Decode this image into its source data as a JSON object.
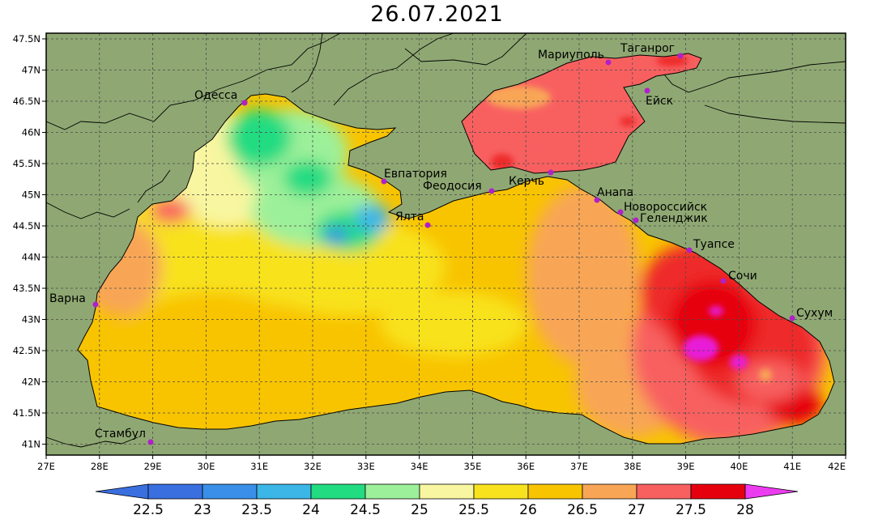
{
  "title": "26.07.2021",
  "colors": {
    "land": "#8fa873",
    "grid": "#4a4a4a",
    "city": "#b020c8",
    "coast": "#000000"
  },
  "lat_ticks": [
    "47.5N",
    "47N",
    "46.5N",
    "46N",
    "45.5N",
    "45N",
    "44.5N",
    "44N",
    "43.5N",
    "43N",
    "42.5N",
    "42N",
    "41.5N",
    "41N"
  ],
  "lon_ticks": [
    "27E",
    "28E",
    "29E",
    "30E",
    "31E",
    "32E",
    "33E",
    "34E",
    "35E",
    "36E",
    "37E",
    "38E",
    "39E",
    "40E",
    "41E",
    "42E"
  ],
  "cities": [
    {
      "name": "Одесса",
      "lon": 30.75,
      "lat": 46.47
    },
    {
      "name": "Евпатория",
      "lon": 33.35,
      "lat": 45.2
    },
    {
      "name": "Феодосия",
      "lon": 35.4,
      "lat": 45.05
    },
    {
      "name": "Керчь",
      "lon": 36.47,
      "lat": 45.35
    },
    {
      "name": "Анапа",
      "lon": 37.32,
      "lat": 44.9
    },
    {
      "name": "Новороссийск",
      "lon": 37.77,
      "lat": 44.72
    },
    {
      "name": "Геленджик",
      "lon": 38.06,
      "lat": 44.57
    },
    {
      "name": "Ялта",
      "lon": 34.17,
      "lat": 44.5
    },
    {
      "name": "Туапсе",
      "lon": 39.07,
      "lat": 44.1
    },
    {
      "name": "Сочи",
      "lon": 39.72,
      "lat": 43.6
    },
    {
      "name": "Сухум",
      "lon": 41.0,
      "lat": 43.0
    },
    {
      "name": "Варна",
      "lon": 27.92,
      "lat": 43.22
    },
    {
      "name": "Стамбул",
      "lon": 28.97,
      "lat": 41.01
    },
    {
      "name": "Мариуполь",
      "lon": 37.55,
      "lat": 47.1
    },
    {
      "name": "Таганрог",
      "lon": 38.9,
      "lat": 47.22
    },
    {
      "name": "Ейск",
      "lon": 38.27,
      "lat": 46.7
    }
  ],
  "colorbar": {
    "labels": [
      "22.5",
      "23",
      "23.5",
      "24",
      "24.5",
      "25",
      "25.5",
      "26",
      "26.5",
      "27",
      "27.5",
      "28"
    ],
    "colors": [
      "#3a6fe0",
      "#3a8fe8",
      "#3bb6e6",
      "#22dc82",
      "#9df09a",
      "#f8f6a0",
      "#f8e21e",
      "#f8c400",
      "#f8a656",
      "#f86060",
      "#ee2a2a",
      "#e6000e",
      "#e81ed8",
      "#ec3cf0"
    ]
  }
}
